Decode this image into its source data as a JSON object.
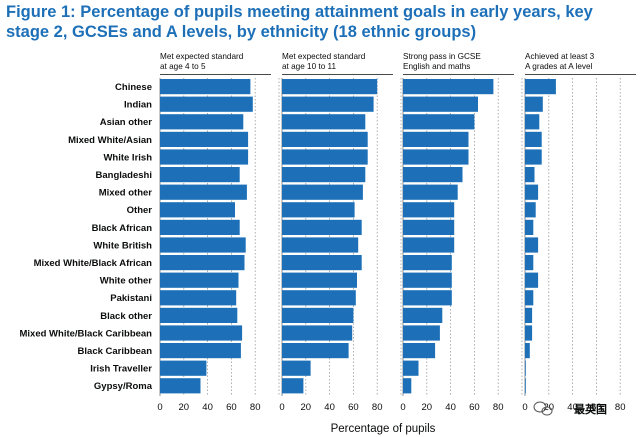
{
  "chart_data": {
    "type": "bar",
    "orientation": "horizontal",
    "title": "Figure 1:  Percentage of pupils meeting attainment goals in early years, key stage 2, GCSEs and A levels, by ethnicity (18 ethnic groups)",
    "xlabel": "Percentage of pupils",
    "xlim": [
      0,
      100
    ],
    "x_ticks": [
      0,
      20,
      40,
      60,
      80
    ],
    "grid": true,
    "bar_color": "#1d70b8",
    "categories": [
      "Chinese",
      "Indian",
      "Asian other",
      "Mixed White/Asian",
      "White Irish",
      "Bangladeshi",
      "Mixed other",
      "Other",
      "Black African",
      "White British",
      "Mixed White/Black African",
      "White other",
      "Pakistani",
      "Black other",
      "Mixed White/Black Caribbean",
      "Black Caribbean",
      "Irish Traveller",
      "Gypsy/Roma"
    ],
    "series": [
      {
        "name": "Met expected standard at age 4 to 5",
        "title_lines": [
          "Met expected standard",
          "at age 4 to 5"
        ],
        "values": [
          76,
          78,
          70,
          74,
          74,
          67,
          73,
          63,
          67,
          72,
          71,
          66,
          64,
          65,
          69,
          68,
          39,
          34
        ]
      },
      {
        "name": "Met expected standard at age 10 to 11",
        "title_lines": [
          "Met expected standard",
          "at age 10 to 11"
        ],
        "values": [
          80,
          77,
          70,
          72,
          72,
          70,
          68,
          61,
          67,
          64,
          67,
          63,
          62,
          60,
          59,
          56,
          24,
          18
        ]
      },
      {
        "name": "Strong pass in GCSE English and maths",
        "title_lines": [
          "Strong pass in GCSE",
          "English and maths"
        ],
        "values": [
          76,
          63,
          60,
          55,
          55,
          50,
          46,
          43,
          43,
          43,
          41,
          41,
          41,
          33,
          31,
          27,
          13,
          7
        ]
      },
      {
        "name": "Achieved at least 3 A grades at A level",
        "title_lines": [
          "Achieved at least 3",
          "A grades at A level"
        ],
        "values": [
          26,
          15,
          12,
          14,
          14,
          8,
          11,
          9,
          7,
          11,
          7,
          11,
          7,
          6,
          6,
          4,
          0,
          0
        ]
      }
    ]
  },
  "watermark": {
    "icon": "wechat-icon",
    "text": "最英国"
  }
}
